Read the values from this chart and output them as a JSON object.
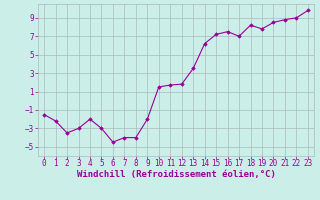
{
  "x": [
    0,
    1,
    2,
    3,
    4,
    5,
    6,
    7,
    8,
    9,
    10,
    11,
    12,
    13,
    14,
    15,
    16,
    17,
    18,
    19,
    20,
    21,
    22,
    23
  ],
  "y": [
    -1.5,
    -2.2,
    -3.5,
    -3.0,
    -2.0,
    -3.0,
    -4.5,
    -4.0,
    -4.0,
    -2.0,
    1.5,
    1.7,
    1.8,
    3.5,
    6.2,
    7.2,
    7.5,
    7.0,
    8.2,
    7.8,
    8.5,
    8.8,
    9.0,
    9.8
  ],
  "line_color": "#990099",
  "marker": "D",
  "marker_size": 1.8,
  "bg_color": "#cceee8",
  "grid_color": "#aabbbb",
  "xlabel": "Windchill (Refroidissement éolien,°C)",
  "xlabel_fontsize": 6.5,
  "tick_fontsize": 5.5,
  "ylim": [
    -6,
    10.5
  ],
  "xlim": [
    -0.5,
    23.5
  ],
  "yticks": [
    -5,
    -3,
    -1,
    1,
    3,
    5,
    7,
    9
  ],
  "xticks": [
    0,
    1,
    2,
    3,
    4,
    5,
    6,
    7,
    8,
    9,
    10,
    11,
    12,
    13,
    14,
    15,
    16,
    17,
    18,
    19,
    20,
    21,
    22,
    23
  ],
  "xtick_labels": [
    "0",
    "1",
    "2",
    "3",
    "4",
    "5",
    "6",
    "7",
    "8",
    "9",
    "10",
    "11",
    "12",
    "13",
    "14",
    "15",
    "16",
    "17",
    "18",
    "19",
    "20",
    "21",
    "22",
    "23"
  ]
}
